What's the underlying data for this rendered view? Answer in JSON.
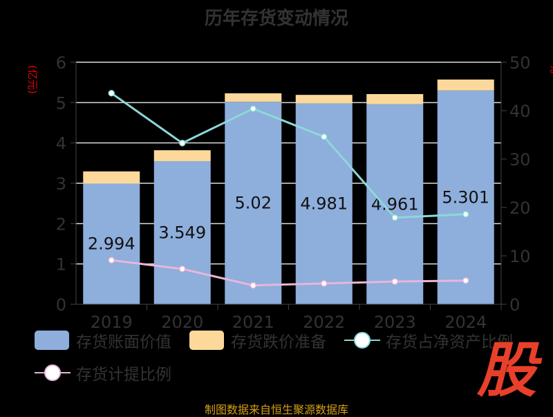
{
  "title": "历年存货变动情况",
  "footer": "制图数据来自恒生聚源数据库",
  "logo": "股",
  "chart_data": {
    "type": "bar",
    "categories": [
      "2019",
      "2020",
      "2021",
      "2022",
      "2023",
      "2024"
    ],
    "left_axis": {
      "label": "(亿元)",
      "ylim": [
        0,
        6
      ],
      "ticks": [
        0,
        1,
        2,
        3,
        4,
        5,
        6
      ]
    },
    "right_axis": {
      "label": "%",
      "ylim": [
        0,
        50
      ],
      "ticks": [
        0,
        10,
        20,
        30,
        40,
        50
      ]
    },
    "series": [
      {
        "name": "存货账面价值",
        "kind": "bar",
        "axis": "left",
        "color": "#8eaedc",
        "values": [
          2.994,
          3.549,
          5.02,
          4.981,
          4.961,
          5.301
        ],
        "labels": [
          "2.994",
          "3.549",
          "5.02",
          "4.981",
          "4.961",
          "5.301"
        ]
      },
      {
        "name": "存货跌价准备",
        "kind": "bar",
        "axis": "left",
        "color": "#fcd99b",
        "values": [
          0.3,
          0.27,
          0.21,
          0.21,
          0.25,
          0.27
        ]
      },
      {
        "name": "存货占净资产比例",
        "kind": "line",
        "axis": "right",
        "color": "#8dd8d8",
        "values": [
          43.6,
          33.3,
          40.4,
          34.6,
          17.9,
          18.6
        ]
      },
      {
        "name": "存货计提比例",
        "kind": "line",
        "axis": "right",
        "color": "#e8b6d8",
        "values": [
          9.1,
          7.3,
          3.9,
          4.3,
          4.7,
          4.9
        ]
      }
    ]
  }
}
